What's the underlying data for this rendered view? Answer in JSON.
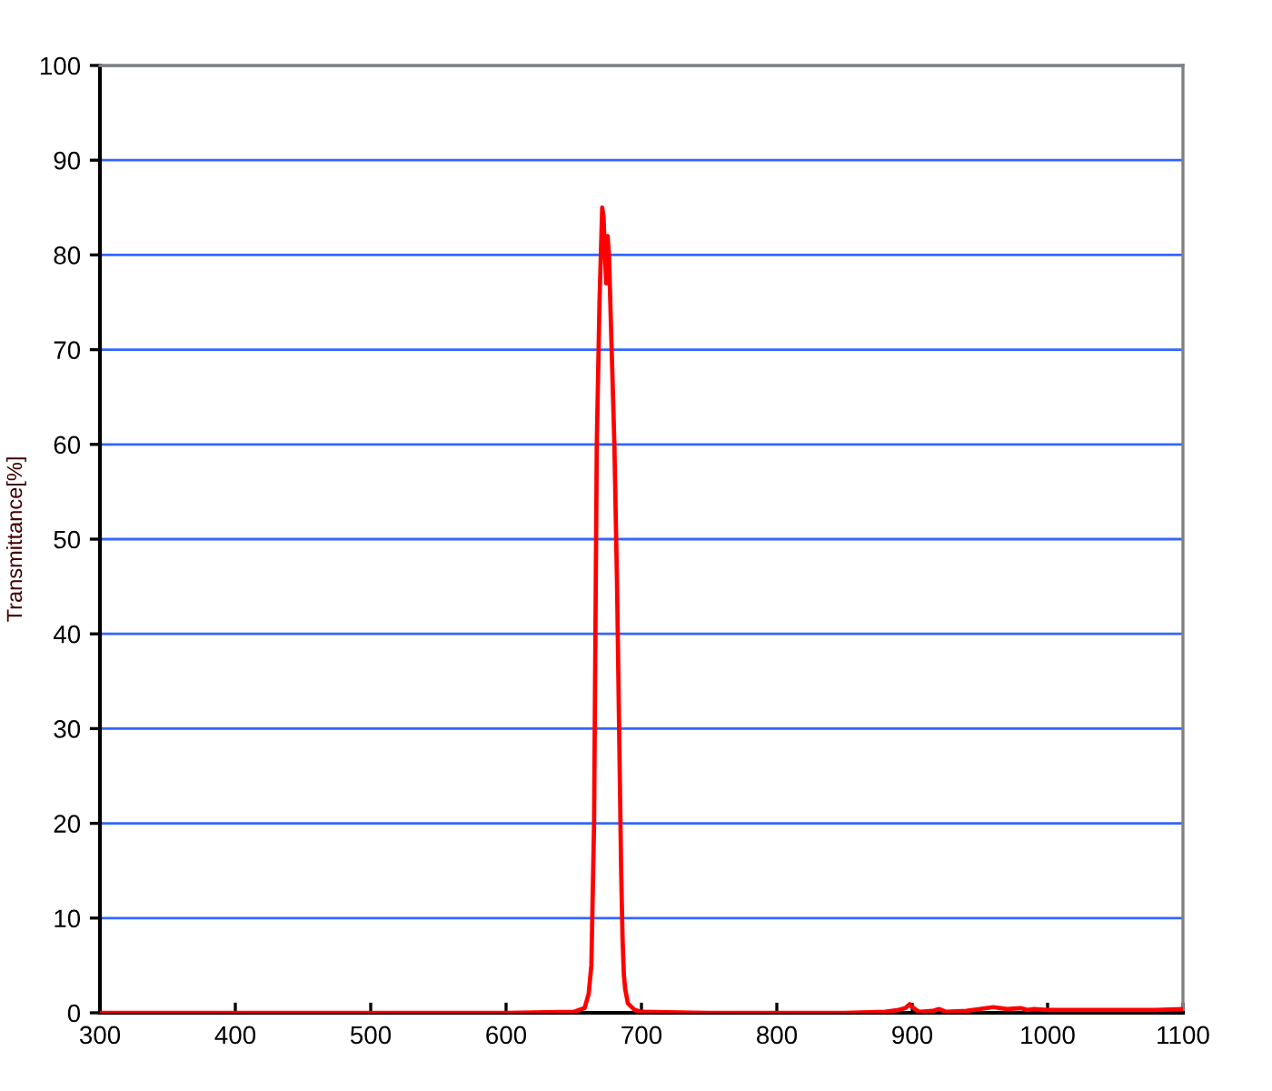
{
  "chart_data": {
    "type": "line",
    "ylabel": "Transmittance[%]",
    "x": [
      300,
      600,
      650,
      658,
      661,
      663,
      665,
      666,
      667,
      669,
      671,
      672,
      673,
      674,
      675,
      676,
      678,
      680,
      682,
      683,
      684,
      685,
      686,
      687,
      688,
      690,
      695,
      700,
      750,
      850,
      880,
      890,
      895,
      898,
      900,
      905,
      915,
      920,
      925,
      940,
      960,
      965,
      970,
      980,
      985,
      990,
      1000,
      1020,
      1040,
      1060,
      1080,
      1100
    ],
    "series": [
      {
        "color": "#ff0000",
        "values": [
          0,
          0,
          0.1,
          0.5,
          2,
          5,
          20,
          40,
          60,
          75,
          85,
          84,
          80,
          77,
          82,
          80,
          70,
          60,
          45,
          35,
          25,
          15,
          8,
          4,
          2.5,
          1,
          0.3,
          0.1,
          0,
          0,
          0.1,
          0.3,
          0.5,
          0.9,
          0.6,
          0.1,
          0.2,
          0.4,
          0.1,
          0.2,
          0.6,
          0.5,
          0.4,
          0.5,
          0.3,
          0.4,
          0.3,
          0.3,
          0.3,
          0.3,
          0.3,
          0.4
        ]
      }
    ],
    "xlim": [
      300,
      1100
    ],
    "ylim": [
      0,
      100
    ],
    "xticks": [
      300,
      400,
      500,
      600,
      700,
      800,
      900,
      1000,
      1100
    ],
    "yticks": [
      0,
      10,
      20,
      30,
      40,
      50,
      60,
      70,
      80,
      90,
      100
    ],
    "grid": "y",
    "marker": "none",
    "line_style": "solid"
  }
}
